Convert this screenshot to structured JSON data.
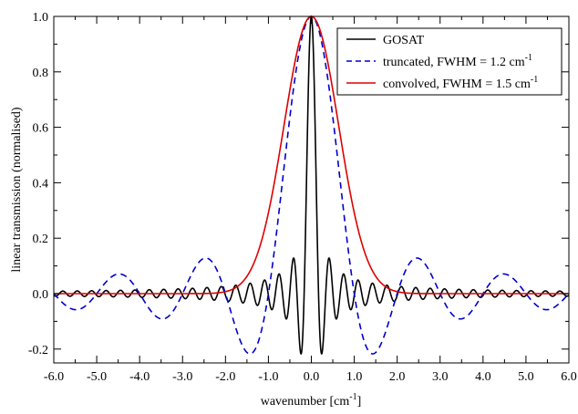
{
  "chart_data": {
    "type": "line",
    "xlabel": "wavenumber [cm",
    "xlabel_sup": "-1",
    "xlabel_suffix": "]",
    "ylabel": "linear transmission (normalised)",
    "xlim": [
      -6.0,
      6.0
    ],
    "ylim": [
      -0.25,
      1.0
    ],
    "x_ticks": [
      -6.0,
      -5.0,
      -4.0,
      -3.0,
      -2.0,
      -1.0,
      0.0,
      1.0,
      2.0,
      3.0,
      4.0,
      5.0,
      6.0
    ],
    "x_tick_labels": [
      "-6.0",
      "-5.0",
      "-4.0",
      "-3.0",
      "-2.0",
      "-1.0",
      "0.0",
      "1.0",
      "2.0",
      "3.0",
      "4.0",
      "5.0",
      "6.0"
    ],
    "y_ticks": [
      -0.2,
      0.0,
      0.2,
      0.4,
      0.6,
      0.8,
      1.0
    ],
    "y_tick_labels": [
      "-0.2",
      "0.0",
      "0.2",
      "0.4",
      "0.6",
      "0.8",
      "1.0"
    ],
    "grid": false,
    "legend_position": "top-right",
    "series": [
      {
        "name": "GOSAT",
        "name_sup": "",
        "color": "#000000",
        "dash": "solid",
        "function": "sinc",
        "fwhm": 0.12,
        "zero_spacing": 0.1678
      },
      {
        "name": "truncated, FWHM = 1.2 cm",
        "name_sup": "-1",
        "color": "#0000cc",
        "dash": "dashed",
        "function": "sinc",
        "fwhm": 1.2,
        "zero_spacing": 1.0
      },
      {
        "name": "convolved, FWHM = 1.5 cm",
        "name_sup": "-1",
        "color": "#dd0000",
        "dash": "solid",
        "function": "gaussian",
        "fwhm": 1.5
      }
    ]
  }
}
